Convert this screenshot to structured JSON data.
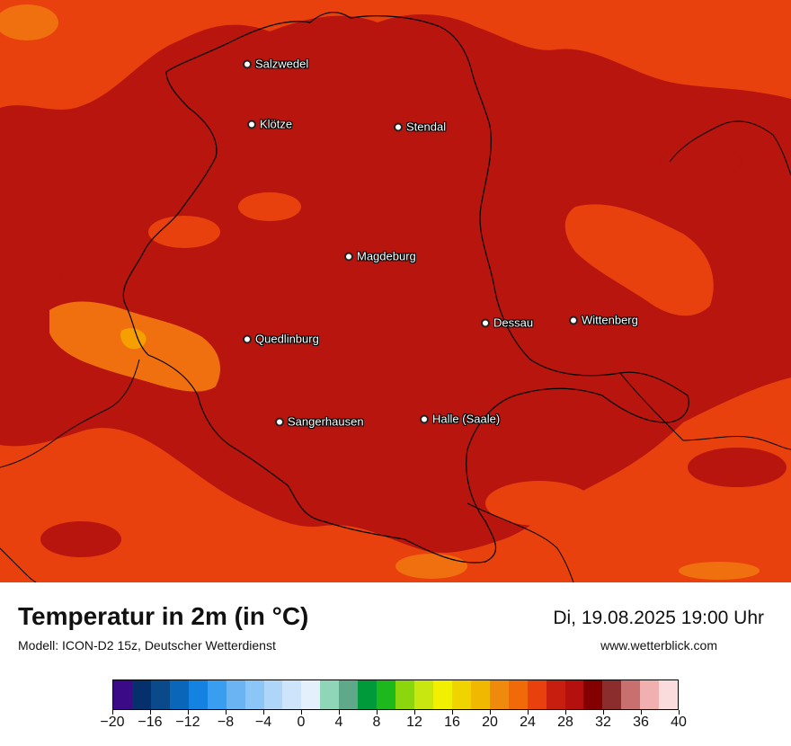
{
  "map": {
    "cities": [
      {
        "name": "Salzwedel"
      },
      {
        "name": "Klötze"
      },
      {
        "name": "Stendal"
      },
      {
        "name": "Magdeburg"
      },
      {
        "name": "Dessau"
      },
      {
        "name": "Wittenberg"
      },
      {
        "name": "Quedlinburg"
      },
      {
        "name": "Sangerhausen"
      },
      {
        "name": "Halle (Saale)"
      }
    ]
  },
  "header": {
    "title": "Temperatur in 2m (in °C)",
    "model": "Modell: ICON-D2 15z, Deutscher Wetterdienst",
    "datetime": "Di, 19.08.2025 19:00 Uhr",
    "website": "www.wetterblick.com"
  },
  "legend": {
    "colors": [
      "#3b0a87",
      "#06306b",
      "#0b4a8a",
      "#0a66b8",
      "#1482e0",
      "#3a9ef0",
      "#6ab4f4",
      "#8cc6f6",
      "#afd6f8",
      "#cde4fa",
      "#e4f0fc",
      "#8fd6b8",
      "#5fa88a",
      "#009a3a",
      "#1cb81c",
      "#8cd60e",
      "#c8e610",
      "#f0f000",
      "#f0d400",
      "#f0b800",
      "#f08a0c",
      "#f06a0a",
      "#e8410e",
      "#c81e10",
      "#b4100e",
      "#820000",
      "#8b2d2d",
      "#c87070",
      "#f0b0b0",
      "#fadcdc"
    ],
    "ticks": [
      "−20",
      "−16",
      "−12",
      "−8",
      "−4",
      "0",
      "4",
      "8",
      "12",
      "16",
      "20",
      "24",
      "28",
      "32",
      "36",
      "40"
    ],
    "tick_values": [
      -20,
      -16,
      -12,
      -8,
      -4,
      0,
      4,
      8,
      12,
      16,
      20,
      24,
      28,
      32,
      36,
      40
    ],
    "min": -20,
    "max": 40
  },
  "colors": {
    "field_base": "#e8410e",
    "field_hot": "#b8150f",
    "field_warm": "#f07010",
    "field_peak": "#f5a000",
    "border": "#000000"
  }
}
